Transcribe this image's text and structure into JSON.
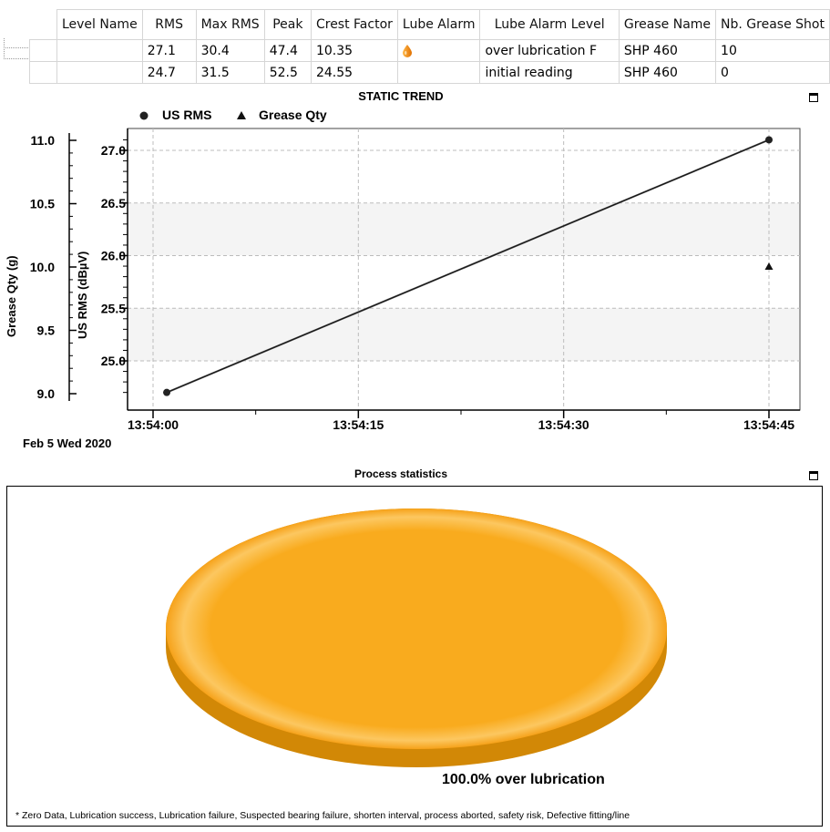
{
  "grid": {
    "columns": [
      "Level Name",
      "RMS",
      "Max RMS",
      "Peak",
      "Crest Factor",
      "Lube Alarm",
      "Lube Alarm Level",
      "Grease Name",
      "Nb. Grease Shot"
    ],
    "rows": [
      {
        "level_name": "",
        "rms": "27.1",
        "max_rms": "30.4",
        "peak": "47.4",
        "crest_factor": "10.35",
        "lube_alarm_icon": "oil-drop-icon",
        "lube_alarm_level": "over lubrication F",
        "grease_name": "SHP 460",
        "nb_grease_shot": "10"
      },
      {
        "level_name": "",
        "rms": "24.7",
        "max_rms": "31.5",
        "peak": "52.5",
        "crest_factor": "24.55",
        "lube_alarm_icon": "",
        "lube_alarm_level": "initial reading",
        "grease_name": "SHP 460",
        "nb_grease_shot": "0"
      }
    ],
    "alarm_color": "#f08a00"
  },
  "trend": {
    "title": "STATIC TREND",
    "date_label": "Feb 5 Wed 2020",
    "chart_data": {
      "type": "line",
      "x": [
        "13:54:00",
        "13:54:45"
      ],
      "xticks": [
        "13:54:00",
        "13:54:15",
        "13:54:30",
        "13:54:45"
      ],
      "series": [
        {
          "name": "US RMS",
          "marker": "circle",
          "axis": "right",
          "x": [
            "13:54:01",
            "13:54:45"
          ],
          "values": [
            24.7,
            27.1
          ]
        },
        {
          "name": "Grease Qty",
          "marker": "triangle",
          "axis": "left",
          "x": [
            "13:54:45"
          ],
          "values": [
            10.0
          ]
        }
      ],
      "y_right": {
        "label": "US RMS (dBµV)",
        "ticks": [
          "25.0",
          "25.5",
          "26.0",
          "26.5",
          "27.0"
        ],
        "range": [
          24.7,
          27.1
        ]
      },
      "y_left": {
        "label": "Grease Qty (g)",
        "ticks": [
          "9.0",
          "9.5",
          "10.0",
          "10.5",
          "11.0"
        ],
        "range": [
          9.0,
          11.0
        ]
      },
      "grid": true,
      "legend": "top-left"
    }
  },
  "process": {
    "title": "Process statistics",
    "chart_data": {
      "type": "pie",
      "slices": [
        {
          "label": "over lubrication",
          "value": 100.0,
          "display": "100.0%  over lubrication",
          "color": "#f9ab1e"
        }
      ]
    },
    "legend_text": "* Zero Data,   Lubrication success,   Lubrication failure,   Suspected bearing failure,   shorten interval,   process aborted,   safety risk,   Defective fitting/line"
  }
}
